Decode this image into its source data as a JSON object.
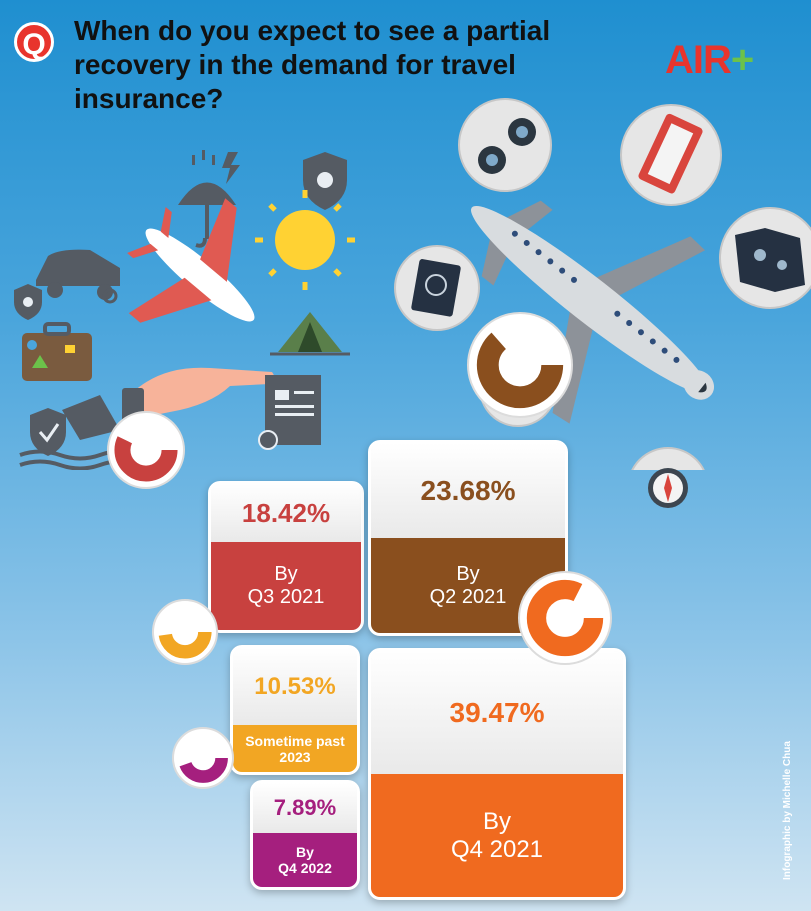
{
  "header": {
    "badge": "Q",
    "question": "When do you expect to see a partial recovery in the demand for travel insurance?",
    "logo_a": "AIR",
    "logo_b": "+"
  },
  "credit": "Infographic by Michelle Chua",
  "colors": {
    "q3_2021": "#c8413f",
    "q2_2021": "#8a4f1e",
    "past_2023": "#f2a623",
    "q4_2022": "#a51f7e",
    "q4_2021": "#f06a1f"
  },
  "chart_data": {
    "type": "bar",
    "title": "When do you expect to see a partial recovery in the demand for travel insurance?",
    "unit": "%",
    "categories": [
      "By Q3 2021",
      "By Q2 2021",
      "Sometime past 2023",
      "By Q4 2022",
      "By Q4 2021"
    ],
    "values": [
      18.42,
      23.68,
      10.53,
      7.89,
      39.47
    ],
    "items": [
      {
        "key": "q3_2021",
        "value": 18.42,
        "value_label": "18.42%",
        "line1": "By",
        "line2": "Q3 2021",
        "color": "#c8413f"
      },
      {
        "key": "q2_2021",
        "value": 23.68,
        "value_label": "23.68%",
        "line1": "By",
        "line2": "Q2 2021",
        "color": "#8a4f1e"
      },
      {
        "key": "past_2023",
        "value": 10.53,
        "value_label": "10.53%",
        "line1": "Sometime past",
        "line2": "2023",
        "color": "#f2a623"
      },
      {
        "key": "q4_2022",
        "value": 7.89,
        "value_label": "7.89%",
        "line1": "By",
        "line2": "Q4 2022",
        "color": "#a51f7e"
      },
      {
        "key": "q4_2021",
        "value": 39.47,
        "value_label": "39.47%",
        "line1": "By",
        "line2": "Q4 2021",
        "color": "#f06a1f"
      }
    ]
  }
}
